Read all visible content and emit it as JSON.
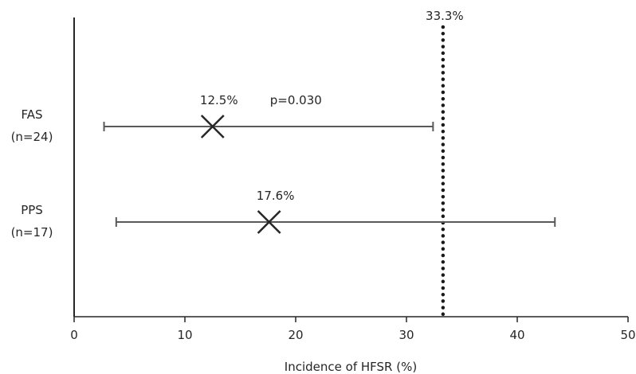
{
  "chart_data": {
    "type": "forest",
    "xlabel": "Incidence of HFSR (%)",
    "xlim": [
      0,
      50
    ],
    "xticks": [
      0,
      10,
      20,
      30,
      40,
      50
    ],
    "grid": false,
    "categories": [
      {
        "line1": "FAS",
        "line2": "(n=24)"
      },
      {
        "line1": "PPS",
        "line2": "(n=17)"
      }
    ],
    "points": [
      {
        "value": 12.5,
        "ci": [
          2.7,
          32.4
        ],
        "label": "12.5%",
        "p_label": "p=0.030"
      },
      {
        "value": 17.6,
        "ci": [
          3.8,
          43.4
        ],
        "label": "17.6%",
        "p_label": ""
      }
    ],
    "reference": {
      "value": 33.3,
      "label": "33.3%",
      "style": "dotted"
    },
    "colors": {
      "axis": "#262626",
      "errorbar": "#595959",
      "marker": "#262626",
      "reference": "#1a1a1a"
    }
  }
}
